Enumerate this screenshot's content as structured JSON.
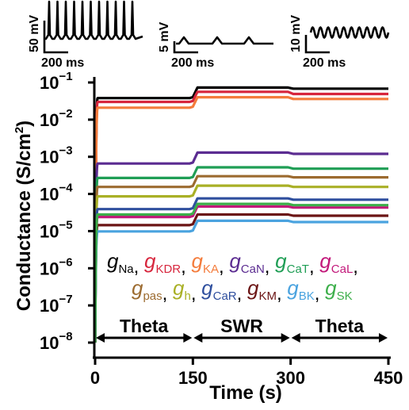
{
  "chart_data": {
    "type": "line",
    "xlabel": "Time (s)",
    "ylabel": "Conductance (S/cm",
    "ylabel_sup": "2",
    "ylabel_close": ")",
    "x_ticks": [
      "0",
      "150",
      "300",
      "450"
    ],
    "y_ticks": [
      {
        "base": "10",
        "exp": "−1"
      },
      {
        "base": "10",
        "exp": "−2"
      },
      {
        "base": "10",
        "exp": "−3"
      },
      {
        "base": "10",
        "exp": "−4"
      },
      {
        "base": "10",
        "exp": "−5"
      },
      {
        "base": "10",
        "exp": "−6"
      },
      {
        "base": "10",
        "exp": "−7"
      },
      {
        "base": "10",
        "exp": "−8"
      }
    ],
    "xlim": [
      0,
      450
    ],
    "ylim": [
      1e-08,
      0.1
    ],
    "yscale": "log",
    "phases": [
      {
        "label": "Theta",
        "start": 0,
        "end": 150
      },
      {
        "label": "SWR",
        "start": 150,
        "end": 300
      },
      {
        "label": "Theta",
        "start": 300,
        "end": 450
      }
    ],
    "series": [
      {
        "name": "g",
        "sub": "Na",
        "color": "#000000",
        "values": [
          0.038,
          0.073,
          0.068
        ]
      },
      {
        "name": "g",
        "sub": "KDR",
        "color": "#d7263d",
        "values": [
          0.03,
          0.056,
          0.049
        ]
      },
      {
        "name": "g",
        "sub": "KA",
        "color": "#f47c3c",
        "values": [
          0.021,
          0.04,
          0.036
        ]
      },
      {
        "name": "g",
        "sub": "CaN",
        "color": "#5b2c91",
        "values": [
          0.00066,
          0.0013,
          0.0012
        ]
      },
      {
        "name": "g",
        "sub": "CaT",
        "color": "#1f9e55",
        "values": [
          0.00027,
          0.00052,
          0.00048
        ]
      },
      {
        "name": "g",
        "sub": "CaL",
        "color": "#c2187a",
        "values": [
          2.4e-05,
          4.6e-05,
          4.3e-05
        ]
      },
      {
        "name": "g",
        "sub": "pas",
        "color": "#9c6b30",
        "values": [
          0.000155,
          0.0003,
          0.00028
        ]
      },
      {
        "name": "g",
        "sub": "h",
        "color": "#a9b026",
        "values": [
          8.6e-05,
          0.000167,
          0.000155
        ]
      },
      {
        "name": "g",
        "sub": "CaR",
        "color": "#2f4f9e",
        "values": [
          3.9e-05,
          7.6e-05,
          7e-05
        ]
      },
      {
        "name": "g",
        "sub": "KM",
        "color": "#6b1414",
        "values": [
          1.45e-05,
          2.8e-05,
          2.6e-05
        ]
      },
      {
        "name": "g",
        "sub": "BK",
        "color": "#4aa3df",
        "values": [
          9.8e-06,
          1.9e-05,
          1.75e-05
        ]
      },
      {
        "name": "g",
        "sub": "SK",
        "color": "#3cae4a",
        "values": [
          2.8e-05,
          5.4e-05,
          5e-05
        ]
      }
    ],
    "insets": [
      {
        "type": "trace",
        "pattern": "spiking",
        "scale_v": "50 mV",
        "scale_t": "200 ms"
      },
      {
        "type": "trace",
        "pattern": "ripple",
        "scale_v": "5 mV",
        "scale_t": "200 ms"
      },
      {
        "type": "trace",
        "pattern": "theta-oscillation",
        "scale_v": "10 mV",
        "scale_t": "200 ms"
      }
    ]
  }
}
